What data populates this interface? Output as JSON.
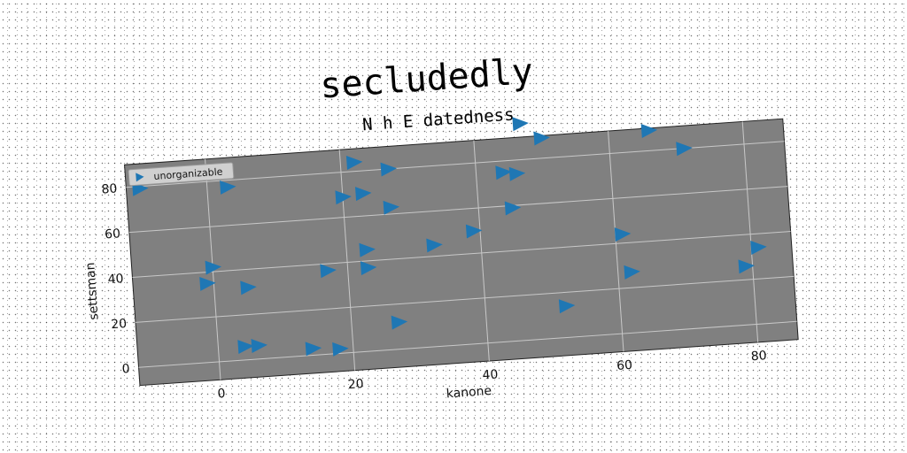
{
  "colors": {
    "plot_background": "#808080",
    "marker": "#1f77b4",
    "grid": "#c8c8c8",
    "legend_background": "#d0d0d0"
  },
  "chart_data": {
    "type": "scatter",
    "title": "secludedly",
    "subtitle": "N h E datedness",
    "xlabel": "kanone",
    "ylabel": "settsman",
    "xlim": [
      -12,
      86
    ],
    "ylim": [
      -8,
      90
    ],
    "xticks": [
      0,
      20,
      40,
      60,
      80
    ],
    "yticks": [
      0,
      20,
      40,
      60,
      80
    ],
    "grid": true,
    "legend_position": "top-left",
    "marker": "triangle-right",
    "series": [
      {
        "name": "unorganizable",
        "points": [
          [
            -10,
            79
          ],
          [
            3,
            77
          ],
          [
            22,
            84
          ],
          [
            27,
            80
          ],
          [
            47,
            96
          ],
          [
            50,
            89
          ],
          [
            66,
            89
          ],
          [
            71,
            80
          ],
          [
            44,
            75
          ],
          [
            46,
            74
          ],
          [
            20,
            69
          ],
          [
            23,
            70
          ],
          [
            27,
            63
          ],
          [
            45,
            59
          ],
          [
            39,
            50
          ],
          [
            33,
            45
          ],
          [
            23,
            45
          ],
          [
            0,
            42
          ],
          [
            -1,
            35
          ],
          [
            5,
            32
          ],
          [
            17,
            37
          ],
          [
            23,
            37
          ],
          [
            61,
            44
          ],
          [
            62,
            27
          ],
          [
            79,
            26
          ],
          [
            81,
            34
          ],
          [
            27,
            12
          ],
          [
            52,
            14
          ],
          [
            4,
            6
          ],
          [
            6,
            6
          ],
          [
            14,
            3
          ],
          [
            18,
            2
          ]
        ]
      }
    ]
  }
}
